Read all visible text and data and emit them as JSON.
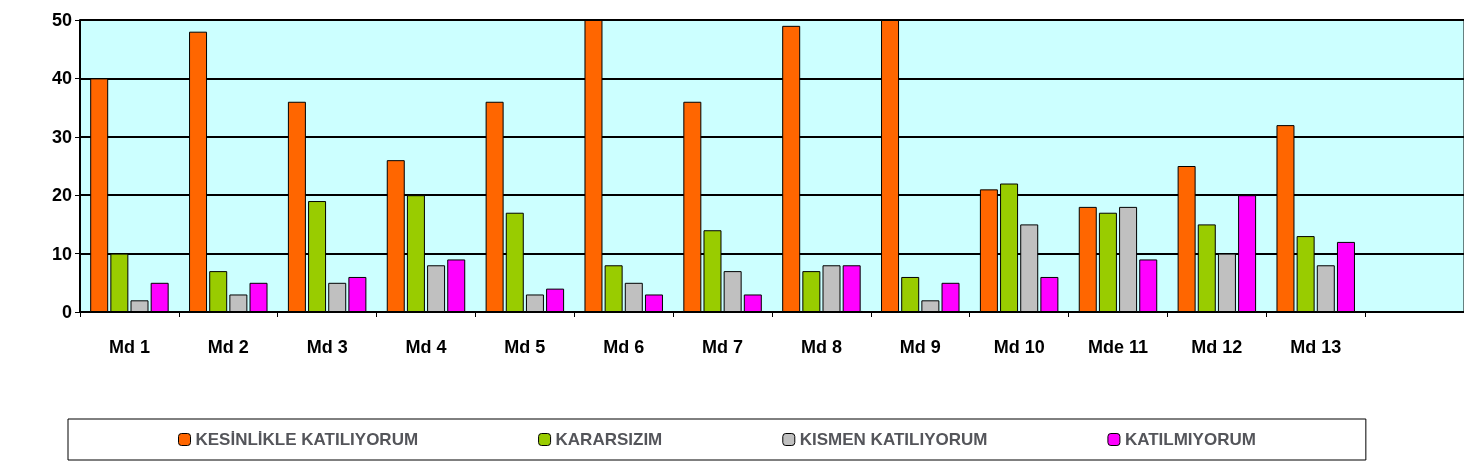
{
  "chart_data": {
    "type": "bar",
    "categories": [
      "Md 1",
      "Md 2",
      "Md 3",
      "Md 4",
      "Md 5",
      "Md 6",
      "Md 7",
      "Md 8",
      "Md 9",
      "Md 10",
      "Mde 11",
      "Md 12",
      "Md 13",
      null
    ],
    "series": [
      {
        "name": "KESİNLİKLE KATILIYORUM",
        "color": "#ff6600",
        "values": [
          40,
          48,
          36,
          26,
          36,
          50,
          36,
          49,
          50,
          21,
          18,
          25,
          32,
          null
        ]
      },
      {
        "name": "KARARSIZIM",
        "color": "#99cc00",
        "values": [
          10,
          7,
          19,
          20,
          17,
          8,
          14,
          7,
          6,
          22,
          17,
          15,
          13,
          null
        ]
      },
      {
        "name": "KISMEN KATILIYORUM",
        "color": "#c0c0c0",
        "values": [
          2,
          3,
          5,
          8,
          3,
          5,
          7,
          8,
          2,
          15,
          18,
          10,
          8,
          null
        ]
      },
      {
        "name": "KATILMIYORUM",
        "color": "#ff00ff",
        "values": [
          5,
          5,
          6,
          9,
          4,
          3,
          3,
          8,
          5,
          6,
          9,
          20,
          12,
          null
        ]
      }
    ],
    "ylim": [
      0,
      50
    ],
    "yticks": [
      0,
      10,
      20,
      30,
      40,
      50
    ],
    "grid": "y",
    "legend": "bottom"
  }
}
